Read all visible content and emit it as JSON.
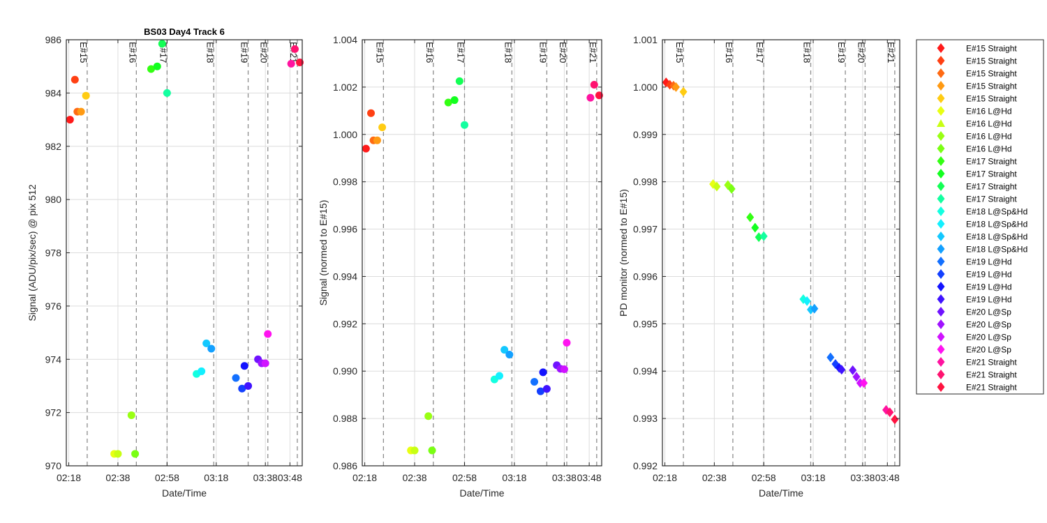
{
  "chart_data": [
    {
      "type": "scatter",
      "title": "BS03 Day4 Track 6",
      "xlabel": "Date/Time",
      "ylabel": "Signal (ADU/pix/sec) @ pix 512",
      "ylim": [
        970,
        986
      ],
      "yticks": [
        970,
        972,
        974,
        976,
        978,
        980,
        982,
        984,
        986
      ],
      "xlim": [
        "02:17",
        "03:53"
      ],
      "xticks": [
        "02:18",
        "02:38",
        "02:58",
        "03:18",
        "03:38",
        "03:48"
      ],
      "grid": true,
      "marker": "circle",
      "points": [
        {
          "time": "02:18:30",
          "y": 983.0,
          "color": "#ff1a1a"
        },
        {
          "time": "02:20:30",
          "y": 984.5,
          "color": "#ff4013"
        },
        {
          "time": "02:21:30",
          "y": 983.3,
          "color": "#ff6a13"
        },
        {
          "time": "02:23:00",
          "y": 983.3,
          "color": "#ff9a13"
        },
        {
          "time": "02:25:00",
          "y": 983.9,
          "color": "#ffcc13"
        },
        {
          "time": "02:36:30",
          "y": 970.45,
          "color": "#e8ff13"
        },
        {
          "time": "02:38:00",
          "y": 970.45,
          "color": "#c8ff13"
        },
        {
          "time": "02:43:30",
          "y": 971.9,
          "color": "#99ff13"
        },
        {
          "time": "02:45:00",
          "y": 970.45,
          "color": "#7aff13"
        },
        {
          "time": "02:51:30",
          "y": 984.9,
          "color": "#33ff13"
        },
        {
          "time": "02:54:00",
          "y": 985.0,
          "color": "#13ff20"
        },
        {
          "time": "02:56:00",
          "y": 985.85,
          "color": "#13ff55"
        },
        {
          "time": "02:58:00",
          "y": 984.0,
          "color": "#13ffa0"
        },
        {
          "time": "03:10:00",
          "y": 973.45,
          "color": "#13ffe0"
        },
        {
          "time": "03:12:00",
          "y": 973.55,
          "color": "#13f0ff"
        },
        {
          "time": "03:14:00",
          "y": 974.6,
          "color": "#13c8ff"
        },
        {
          "time": "03:16:00",
          "y": 974.4,
          "color": "#13a0ff"
        },
        {
          "time": "03:26:00",
          "y": 973.3,
          "color": "#1370ff"
        },
        {
          "time": "03:28:30",
          "y": 972.9,
          "color": "#1340ff"
        },
        {
          "time": "03:29:30",
          "y": 973.75,
          "color": "#1313ff"
        },
        {
          "time": "03:31:00",
          "y": 973.0,
          "color": "#4013ff"
        },
        {
          "time": "03:35:00",
          "y": 974.0,
          "color": "#7013ff"
        },
        {
          "time": "03:36:30",
          "y": 973.85,
          "color": "#a013ff"
        },
        {
          "time": "03:38:00",
          "y": 973.85,
          "color": "#d013ff"
        },
        {
          "time": "03:39:00",
          "y": 974.95,
          "color": "#ff13f0"
        },
        {
          "time": "03:48:30",
          "y": 985.1,
          "color": "#ff13a0"
        },
        {
          "time": "03:50:00",
          "y": 985.65,
          "color": "#ff1370"
        },
        {
          "time": "03:52:00",
          "y": 985.15,
          "color": "#ff1340"
        }
      ],
      "events": [
        {
          "label": "E#15",
          "time": "02:25:30"
        },
        {
          "label": "E#16",
          "time": "02:45:30"
        },
        {
          "label": "E#17",
          "time": "02:58:00"
        },
        {
          "label": "E#18",
          "time": "03:17:00"
        },
        {
          "label": "E#19",
          "time": "03:31:00"
        },
        {
          "label": "E#20",
          "time": "03:39:00"
        },
        {
          "label": "E#21",
          "time": "03:51:00"
        }
      ]
    },
    {
      "type": "scatter",
      "title": "",
      "xlabel": "Date/Time",
      "ylabel": "Signal (normed to E#15)",
      "ylim": [
        0.986,
        1.004
      ],
      "yticks": [
        0.986,
        0.988,
        0.99,
        0.992,
        0.994,
        0.996,
        0.998,
        1,
        1.002,
        1.004
      ],
      "xlim": [
        "02:17",
        "03:53"
      ],
      "xticks": [
        "02:18",
        "02:38",
        "02:58",
        "03:18",
        "03:38",
        "03:48"
      ],
      "grid": true,
      "marker": "circle",
      "points": [
        {
          "time": "02:18:30",
          "y": 0.9994,
          "color": "#ff1a1a"
        },
        {
          "time": "02:20:30",
          "y": 1.0009,
          "color": "#ff4013"
        },
        {
          "time": "02:21:30",
          "y": 0.99975,
          "color": "#ff6a13"
        },
        {
          "time": "02:23:00",
          "y": 0.99975,
          "color": "#ff9a13"
        },
        {
          "time": "02:25:00",
          "y": 1.0003,
          "color": "#ffcc13"
        },
        {
          "time": "02:36:30",
          "y": 0.98665,
          "color": "#e8ff13"
        },
        {
          "time": "02:38:00",
          "y": 0.98665,
          "color": "#c8ff13"
        },
        {
          "time": "02:43:30",
          "y": 0.9881,
          "color": "#99ff13"
        },
        {
          "time": "02:45:00",
          "y": 0.98665,
          "color": "#7aff13"
        },
        {
          "time": "02:51:30",
          "y": 1.00135,
          "color": "#33ff13"
        },
        {
          "time": "02:54:00",
          "y": 1.00145,
          "color": "#13ff20"
        },
        {
          "time": "02:56:00",
          "y": 1.00225,
          "color": "#13ff55"
        },
        {
          "time": "02:58:00",
          "y": 1.0004,
          "color": "#13ffa0"
        },
        {
          "time": "03:10:00",
          "y": 0.98965,
          "color": "#13ffe0"
        },
        {
          "time": "03:12:00",
          "y": 0.9898,
          "color": "#13f0ff"
        },
        {
          "time": "03:14:00",
          "y": 0.9909,
          "color": "#13c8ff"
        },
        {
          "time": "03:16:00",
          "y": 0.9907,
          "color": "#13a0ff"
        },
        {
          "time": "03:26:00",
          "y": 0.98955,
          "color": "#1370ff"
        },
        {
          "time": "03:28:30",
          "y": 0.98915,
          "color": "#1340ff"
        },
        {
          "time": "03:29:30",
          "y": 0.98995,
          "color": "#1313ff"
        },
        {
          "time": "03:31:00",
          "y": 0.98925,
          "color": "#4013ff"
        },
        {
          "time": "03:35:00",
          "y": 0.99025,
          "color": "#7013ff"
        },
        {
          "time": "03:36:30",
          "y": 0.9901,
          "color": "#a013ff"
        },
        {
          "time": "03:38:00",
          "y": 0.99008,
          "color": "#d013ff"
        },
        {
          "time": "03:39:00",
          "y": 0.9912,
          "color": "#ff13f0"
        },
        {
          "time": "03:48:30",
          "y": 1.00155,
          "color": "#ff13a0"
        },
        {
          "time": "03:50:00",
          "y": 1.0021,
          "color": "#ff1370"
        },
        {
          "time": "03:52:00",
          "y": 1.00165,
          "color": "#ff1340"
        }
      ],
      "events": [
        {
          "label": "E#15",
          "time": "02:25:30"
        },
        {
          "label": "E#16",
          "time": "02:45:30"
        },
        {
          "label": "E#17",
          "time": "02:58:00"
        },
        {
          "label": "E#18",
          "time": "03:17:00"
        },
        {
          "label": "E#19",
          "time": "03:31:00"
        },
        {
          "label": "E#20",
          "time": "03:39:00"
        },
        {
          "label": "E#21",
          "time": "03:51:00"
        }
      ]
    },
    {
      "type": "scatter",
      "title": "",
      "xlabel": "Date/Time",
      "ylabel": "PD monitor (normed to E#15)",
      "ylim": [
        0.992,
        1.001
      ],
      "yticks": [
        0.992,
        0.993,
        0.994,
        0.995,
        0.996,
        0.997,
        0.998,
        0.999,
        1,
        1.001
      ],
      "xlim": [
        "02:17",
        "03:53"
      ],
      "xticks": [
        "02:18",
        "02:38",
        "02:58",
        "03:18",
        "03:38",
        "03:48"
      ],
      "grid": true,
      "marker": "diamond",
      "points": [
        {
          "time": "02:18:30",
          "y": 1.0001,
          "color": "#ff1a1a"
        },
        {
          "time": "02:20:00",
          "y": 1.00005,
          "color": "#ff4013"
        },
        {
          "time": "02:21:30",
          "y": 1.00003,
          "color": "#ff6a13"
        },
        {
          "time": "02:22:30",
          "y": 1.0,
          "color": "#ff9a13"
        },
        {
          "time": "02:25:30",
          "y": 0.9999,
          "color": "#ffcc13"
        },
        {
          "time": "02:37:30",
          "y": 0.99795,
          "color": "#e8ff13"
        },
        {
          "time": "02:39:00",
          "y": 0.9979,
          "color": "#c8ff13"
        },
        {
          "time": "02:43:30",
          "y": 0.99793,
          "color": "#99ff13"
        },
        {
          "time": "02:45:00",
          "y": 0.99785,
          "color": "#7aff13"
        },
        {
          "time": "02:52:30",
          "y": 0.99725,
          "color": "#33ff13"
        },
        {
          "time": "02:54:30",
          "y": 0.99703,
          "color": "#13ff20"
        },
        {
          "time": "02:56:00",
          "y": 0.99683,
          "color": "#13ff55"
        },
        {
          "time": "02:58:00",
          "y": 0.99685,
          "color": "#13ffa0"
        },
        {
          "time": "03:14:00",
          "y": 0.99552,
          "color": "#13ffe0"
        },
        {
          "time": "03:15:30",
          "y": 0.99548,
          "color": "#13f0ff"
        },
        {
          "time": "03:17:00",
          "y": 0.9953,
          "color": "#13c8ff"
        },
        {
          "time": "03:18:30",
          "y": 0.99532,
          "color": "#13a0ff"
        },
        {
          "time": "03:25:00",
          "y": 0.99429,
          "color": "#1370ff"
        },
        {
          "time": "03:27:00",
          "y": 0.99415,
          "color": "#1340ff"
        },
        {
          "time": "03:28:30",
          "y": 0.99407,
          "color": "#1313ff"
        },
        {
          "time": "03:29:30",
          "y": 0.99403,
          "color": "#4013ff"
        },
        {
          "time": "03:34:00",
          "y": 0.99402,
          "color": "#7013ff"
        },
        {
          "time": "03:35:30",
          "y": 0.99388,
          "color": "#a013ff"
        },
        {
          "time": "03:37:00",
          "y": 0.99375,
          "color": "#d013ff"
        },
        {
          "time": "03:38:30",
          "y": 0.99375,
          "color": "#ff13f0"
        },
        {
          "time": "03:47:30",
          "y": 0.99318,
          "color": "#ff13a0"
        },
        {
          "time": "03:49:00",
          "y": 0.99313,
          "color": "#ff1370"
        },
        {
          "time": "03:51:00",
          "y": 0.99298,
          "color": "#ff1340"
        }
      ],
      "events": [
        {
          "label": "E#15",
          "time": "02:25:30"
        },
        {
          "label": "E#16",
          "time": "02:45:30"
        },
        {
          "label": "E#17",
          "time": "02:58:00"
        },
        {
          "label": "E#18",
          "time": "03:17:00"
        },
        {
          "label": "E#19",
          "time": "03:31:00"
        },
        {
          "label": "E#20",
          "time": "03:39:00"
        },
        {
          "label": "E#21",
          "time": "03:51:00"
        }
      ]
    }
  ],
  "legend": {
    "placement": "right",
    "entries": [
      {
        "label": "E#15 Straight",
        "color": "#ff1a1a",
        "marker": "diamond"
      },
      {
        "label": "E#15 Straight",
        "color": "#ff4013",
        "marker": "diamond"
      },
      {
        "label": "E#15 Straight",
        "color": "#ff6a13",
        "marker": "diamond"
      },
      {
        "label": "E#15 Straight",
        "color": "#ff9a13",
        "marker": "diamond"
      },
      {
        "label": "E#15 Straight",
        "color": "#ffcc13",
        "marker": "diamond"
      },
      {
        "label": "E#16 L@Hd",
        "color": "#e8ff13",
        "marker": "diamond"
      },
      {
        "label": "E#16 L@Hd",
        "color": "#c8ff13",
        "marker": "triangle"
      },
      {
        "label": "E#16 L@Hd",
        "color": "#99ff13",
        "marker": "diamond"
      },
      {
        "label": "E#16 L@Hd",
        "color": "#7aff13",
        "marker": "diamond"
      },
      {
        "label": "E#17 Straight",
        "color": "#33ff13",
        "marker": "diamond"
      },
      {
        "label": "E#17 Straight",
        "color": "#13ff20",
        "marker": "diamond"
      },
      {
        "label": "E#17 Straight",
        "color": "#13ff55",
        "marker": "diamond"
      },
      {
        "label": "E#17 Straight",
        "color": "#13ffa0",
        "marker": "diamond"
      },
      {
        "label": "E#18 L@Sp&Hd",
        "color": "#13ffe0",
        "marker": "diamond"
      },
      {
        "label": "E#18 L@Sp&Hd",
        "color": "#13f0ff",
        "marker": "diamond"
      },
      {
        "label": "E#18 L@Sp&Hd",
        "color": "#13c8ff",
        "marker": "diamond"
      },
      {
        "label": "E#18 L@Sp&Hd",
        "color": "#13a0ff",
        "marker": "diamond"
      },
      {
        "label": "E#19 L@Hd",
        "color": "#1370ff",
        "marker": "diamond"
      },
      {
        "label": "E#19 L@Hd",
        "color": "#1340ff",
        "marker": "diamond"
      },
      {
        "label": "E#19 L@Hd",
        "color": "#1313ff",
        "marker": "diamond"
      },
      {
        "label": "E#19 L@Hd",
        "color": "#4013ff",
        "marker": "diamond"
      },
      {
        "label": "E#20 L@Sp",
        "color": "#7013ff",
        "marker": "diamond"
      },
      {
        "label": "E#20 L@Sp",
        "color": "#a013ff",
        "marker": "diamond"
      },
      {
        "label": "E#20 L@Sp",
        "color": "#d013ff",
        "marker": "diamond"
      },
      {
        "label": "E#20 L@Sp",
        "color": "#ff13f0",
        "marker": "diamond"
      },
      {
        "label": "E#21 Straight",
        "color": "#ff13a0",
        "marker": "diamond"
      },
      {
        "label": "E#21 Straight",
        "color": "#ff1370",
        "marker": "diamond"
      },
      {
        "label": "E#21 Straight",
        "color": "#ff1340",
        "marker": "diamond"
      }
    ]
  }
}
